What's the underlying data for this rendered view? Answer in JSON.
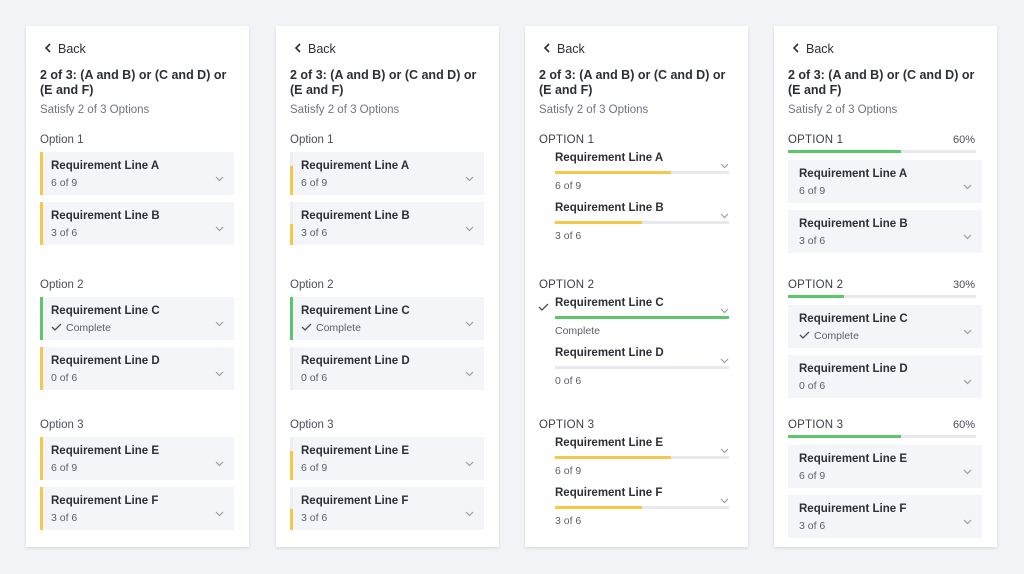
{
  "colors": {
    "yellow": "#f5c84a",
    "green": "#5dc66a",
    "track": "#e8e9ee"
  },
  "icons": {
    "back": "chevron-left-icon",
    "expand": "chevron-down-icon",
    "done": "check-icon"
  },
  "cards": [
    {
      "back_label": "Back",
      "title": "2 of 3: (A and B) or (C and D) or (E and F)",
      "subtitle": "Satisfy 2 of 3 Options",
      "options": [
        {
          "label": "Option 1",
          "items": [
            {
              "label": "Requirement Line A",
              "status": "6 of 9",
              "progress": 0.6667,
              "complete": false
            },
            {
              "label": "Requirement Line B",
              "status": "3 of 6",
              "progress": 0.5,
              "complete": false
            }
          ]
        },
        {
          "label": "Option 2",
          "items": [
            {
              "label": "Requirement Line C",
              "status": "Complete",
              "progress": 1.0,
              "complete": true
            },
            {
              "label": "Requirement Line D",
              "status": "0 of 6",
              "progress": 0.0,
              "complete": false
            }
          ]
        },
        {
          "label": "Option 3",
          "items": [
            {
              "label": "Requirement Line E",
              "status": "6 of 9",
              "progress": 0.6667,
              "complete": false
            },
            {
              "label": "Requirement Line F",
              "status": "3 of 6",
              "progress": 0.5,
              "complete": false
            }
          ]
        }
      ]
    },
    {
      "back_label": "Back",
      "title": "2 of 3: (A and B) or (C and D) or (E and F)",
      "subtitle": "Satisfy 2 of 3 Options",
      "options": [
        {
          "label": "Option 1",
          "items": [
            {
              "label": "Requirement Line A",
              "status": "6 of 9",
              "progress": 0.6667,
              "complete": false
            },
            {
              "label": "Requirement Line B",
              "status": "3 of 6",
              "progress": 0.5,
              "complete": false
            }
          ]
        },
        {
          "label": "Option 2",
          "items": [
            {
              "label": "Requirement Line C",
              "status": "Complete",
              "progress": 1.0,
              "complete": true
            },
            {
              "label": "Requirement Line D",
              "status": "0 of 6",
              "progress": 0.0,
              "complete": false
            }
          ]
        },
        {
          "label": "Option 3",
          "items": [
            {
              "label": "Requirement Line E",
              "status": "6 of 9",
              "progress": 0.6667,
              "complete": false
            },
            {
              "label": "Requirement Line F",
              "status": "3 of 6",
              "progress": 0.5,
              "complete": false
            }
          ]
        }
      ]
    },
    {
      "back_label": "Back",
      "title": "2 of 3: (A and B) or (C and D) or (E and F)",
      "subtitle": "Satisfy 2 of 3 Options",
      "options": [
        {
          "label": "OPTION 1",
          "items": [
            {
              "label": "Requirement Line A",
              "status": "6 of 9",
              "progress": 0.6667,
              "complete": false
            },
            {
              "label": "Requirement Line B",
              "status": "3 of 6",
              "progress": 0.5,
              "complete": false
            }
          ]
        },
        {
          "label": "OPTION 2",
          "items": [
            {
              "label": "Requirement Line C",
              "status": "Complete",
              "progress": 1.0,
              "complete": true
            },
            {
              "label": "Requirement Line D",
              "status": "0 of 6",
              "progress": 0.0,
              "complete": false
            }
          ]
        },
        {
          "label": "OPTION 3",
          "items": [
            {
              "label": "Requirement Line E",
              "status": "6 of 9",
              "progress": 0.6667,
              "complete": false
            },
            {
              "label": "Requirement Line F",
              "status": "3 of 6",
              "progress": 0.5,
              "complete": false
            }
          ]
        }
      ]
    },
    {
      "back_label": "Back",
      "title": "2 of 3: (A and B) or (C and D) or (E and F)",
      "subtitle": "Satisfy 2 of 3 Options",
      "options": [
        {
          "label": "OPTION 1",
          "percent": "60%",
          "progress": 0.6,
          "items": [
            {
              "label": "Requirement Line A",
              "status": "6 of 9",
              "complete": false
            },
            {
              "label": "Requirement Line B",
              "status": "3 of 6",
              "complete": false
            }
          ]
        },
        {
          "label": "OPTION 2",
          "percent": "30%",
          "progress": 0.3,
          "items": [
            {
              "label": "Requirement Line C",
              "status": "Complete",
              "complete": true
            },
            {
              "label": "Requirement Line D",
              "status": "0 of 6",
              "complete": false
            }
          ]
        },
        {
          "label": "OPTION 3",
          "percent": "60%",
          "progress": 0.6,
          "items": [
            {
              "label": "Requirement Line E",
              "status": "6 of 9",
              "complete": false
            },
            {
              "label": "Requirement Line F",
              "status": "3 of 6",
              "complete": false
            }
          ]
        }
      ]
    }
  ]
}
